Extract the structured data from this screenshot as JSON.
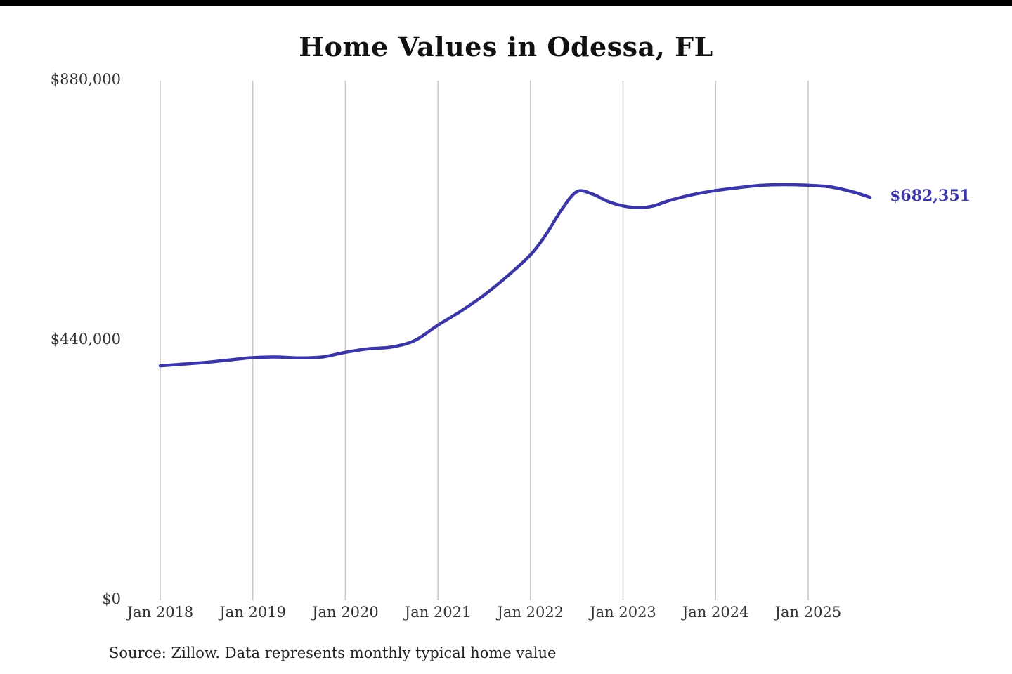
{
  "page": {
    "title": "Home Values in Odessa, FL",
    "source_note": "Source: Zillow. Data represents monthly typical home value"
  },
  "colors": {
    "line": "#3b36a5",
    "grid": "#c9c9c9",
    "topbar": "#000000",
    "tick_text": "#333333"
  },
  "chart_data": {
    "type": "line",
    "title": "Home Values in Odessa, FL",
    "xlabel": "",
    "ylabel": "",
    "ylim": [
      0,
      880000
    ],
    "xlim": [
      2018,
      2025.75
    ],
    "grid": "vertical-only",
    "legend": "none",
    "end_label": "$682,351",
    "end_value": 682351,
    "y_ticks": [
      {
        "value": 0,
        "label": "$0"
      },
      {
        "value": 440000,
        "label": "$440,000"
      },
      {
        "value": 880000,
        "label": "$880,000"
      }
    ],
    "x_ticks": [
      {
        "year": 2018,
        "label": "Jan 2018"
      },
      {
        "year": 2019,
        "label": "Jan 2019"
      },
      {
        "year": 2020,
        "label": "Jan 2020"
      },
      {
        "year": 2021,
        "label": "Jan 2021"
      },
      {
        "year": 2022,
        "label": "Jan 2022"
      },
      {
        "year": 2023,
        "label": "Jan 2023"
      },
      {
        "year": 2024,
        "label": "Jan 2024"
      },
      {
        "year": 2025,
        "label": "Jan 2025"
      }
    ],
    "series": [
      {
        "name": "Monthly typical home value",
        "color": "#3b36a5",
        "x": [
          2018.0,
          2018.25,
          2018.5,
          2018.75,
          2019.0,
          2019.25,
          2019.5,
          2019.75,
          2020.0,
          2020.25,
          2020.5,
          2020.75,
          2021.0,
          2021.25,
          2021.5,
          2021.75,
          2022.0,
          2022.17,
          2022.33,
          2022.5,
          2022.67,
          2022.83,
          2023.0,
          2023.17,
          2023.33,
          2023.5,
          2023.75,
          2024.0,
          2024.25,
          2024.5,
          2024.75,
          2025.0,
          2025.25,
          2025.5,
          2025.67
        ],
        "values": [
          397000,
          400000,
          403000,
          407000,
          411000,
          412000,
          410500,
          412000,
          420000,
          426000,
          429000,
          440000,
          466000,
          490000,
          517000,
          549000,
          585000,
          620000,
          660000,
          692000,
          688000,
          676000,
          668000,
          665000,
          668000,
          677000,
          687000,
          694000,
          699000,
          703000,
          704000,
          703000,
          700000,
          691000,
          682351
        ]
      }
    ]
  }
}
